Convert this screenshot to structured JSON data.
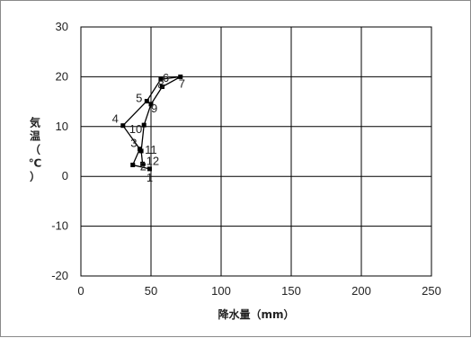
{
  "chart_data": {
    "type": "line",
    "title": "",
    "xlabel": "降水量（mm）",
    "ylabel": "気温（℃）",
    "ylabel_chars": [
      "気",
      "温",
      "（",
      "℃",
      "）"
    ],
    "xlim": [
      0,
      250
    ],
    "ylim": [
      -20,
      30
    ],
    "xticks": [
      0,
      50,
      100,
      150,
      200,
      250
    ],
    "yticks": [
      -20,
      -10,
      0,
      10,
      20,
      30
    ],
    "grid": true,
    "series": [
      {
        "points": [
          {
            "label": "1",
            "x": 49,
            "y": 1.5
          },
          {
            "label": "2",
            "x": 37,
            "y": 2.3
          },
          {
            "label": "3",
            "x": 42,
            "y": 5.5
          },
          {
            "label": "4",
            "x": 30,
            "y": 10.2
          },
          {
            "label": "5",
            "x": 47,
            "y": 15.1
          },
          {
            "label": "6",
            "x": 57,
            "y": 19.5
          },
          {
            "label": "7",
            "x": 71,
            "y": 20.0
          },
          {
            "label": "8",
            "x": 58,
            "y": 18.0
          },
          {
            "label": "9",
            "x": 50,
            "y": 14.5
          },
          {
            "label": "10",
            "x": 45,
            "y": 10.3
          },
          {
            "label": "11",
            "x": 43,
            "y": 5.1
          },
          {
            "label": "12",
            "x": 44,
            "y": 2.5
          }
        ]
      }
    ]
  }
}
